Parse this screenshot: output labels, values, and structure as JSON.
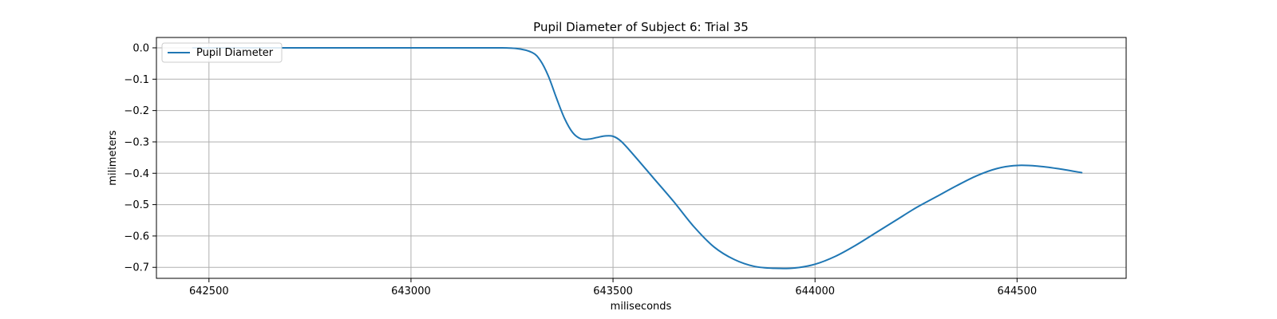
{
  "chart_data": {
    "type": "line",
    "title": "Pupil Diameter of Subject 6: Trial 35",
    "xlabel": "miliseconds",
    "ylabel": "milimeters",
    "xlim": [
      642370,
      644770
    ],
    "ylim": [
      -0.735,
      0.033
    ],
    "x_ticks": [
      642500,
      643000,
      643500,
      644000,
      644500
    ],
    "x_tick_labels": [
      "642500",
      "643000",
      "643500",
      "644000",
      "644500"
    ],
    "y_ticks": [
      0.0,
      -0.1,
      -0.2,
      -0.3,
      -0.4,
      -0.5,
      -0.6,
      -0.7
    ],
    "y_tick_labels": [
      "0.0",
      "−0.1",
      "−0.2",
      "−0.3",
      "−0.4",
      "−0.5",
      "−0.6",
      "−0.7"
    ],
    "grid": true,
    "legend_position": "top-left",
    "series": [
      {
        "name": "Pupil Diameter",
        "color": "#1f77b4",
        "x": [
          642460,
          642600,
          642800,
          643000,
          643200,
          643260,
          643300,
          643320,
          643340,
          643360,
          643380,
          643400,
          643420,
          643440,
          643460,
          643480,
          643500,
          643520,
          643550,
          643600,
          643650,
          643700,
          643750,
          643800,
          643850,
          643900,
          643950,
          644000,
          644050,
          644100,
          644150,
          644200,
          644250,
          644300,
          644350,
          644400,
          644450,
          644500,
          644550,
          644600,
          644660
        ],
        "y": [
          0.0,
          0.0,
          0.0,
          0.0,
          0.0,
          -0.002,
          -0.015,
          -0.04,
          -0.09,
          -0.16,
          -0.225,
          -0.27,
          -0.29,
          -0.291,
          -0.286,
          -0.281,
          -0.282,
          -0.298,
          -0.34,
          -0.415,
          -0.49,
          -0.57,
          -0.635,
          -0.675,
          -0.697,
          -0.703,
          -0.702,
          -0.69,
          -0.665,
          -0.63,
          -0.59,
          -0.55,
          -0.51,
          -0.475,
          -0.44,
          -0.408,
          -0.385,
          -0.375,
          -0.377,
          -0.385,
          -0.398
        ]
      }
    ]
  }
}
